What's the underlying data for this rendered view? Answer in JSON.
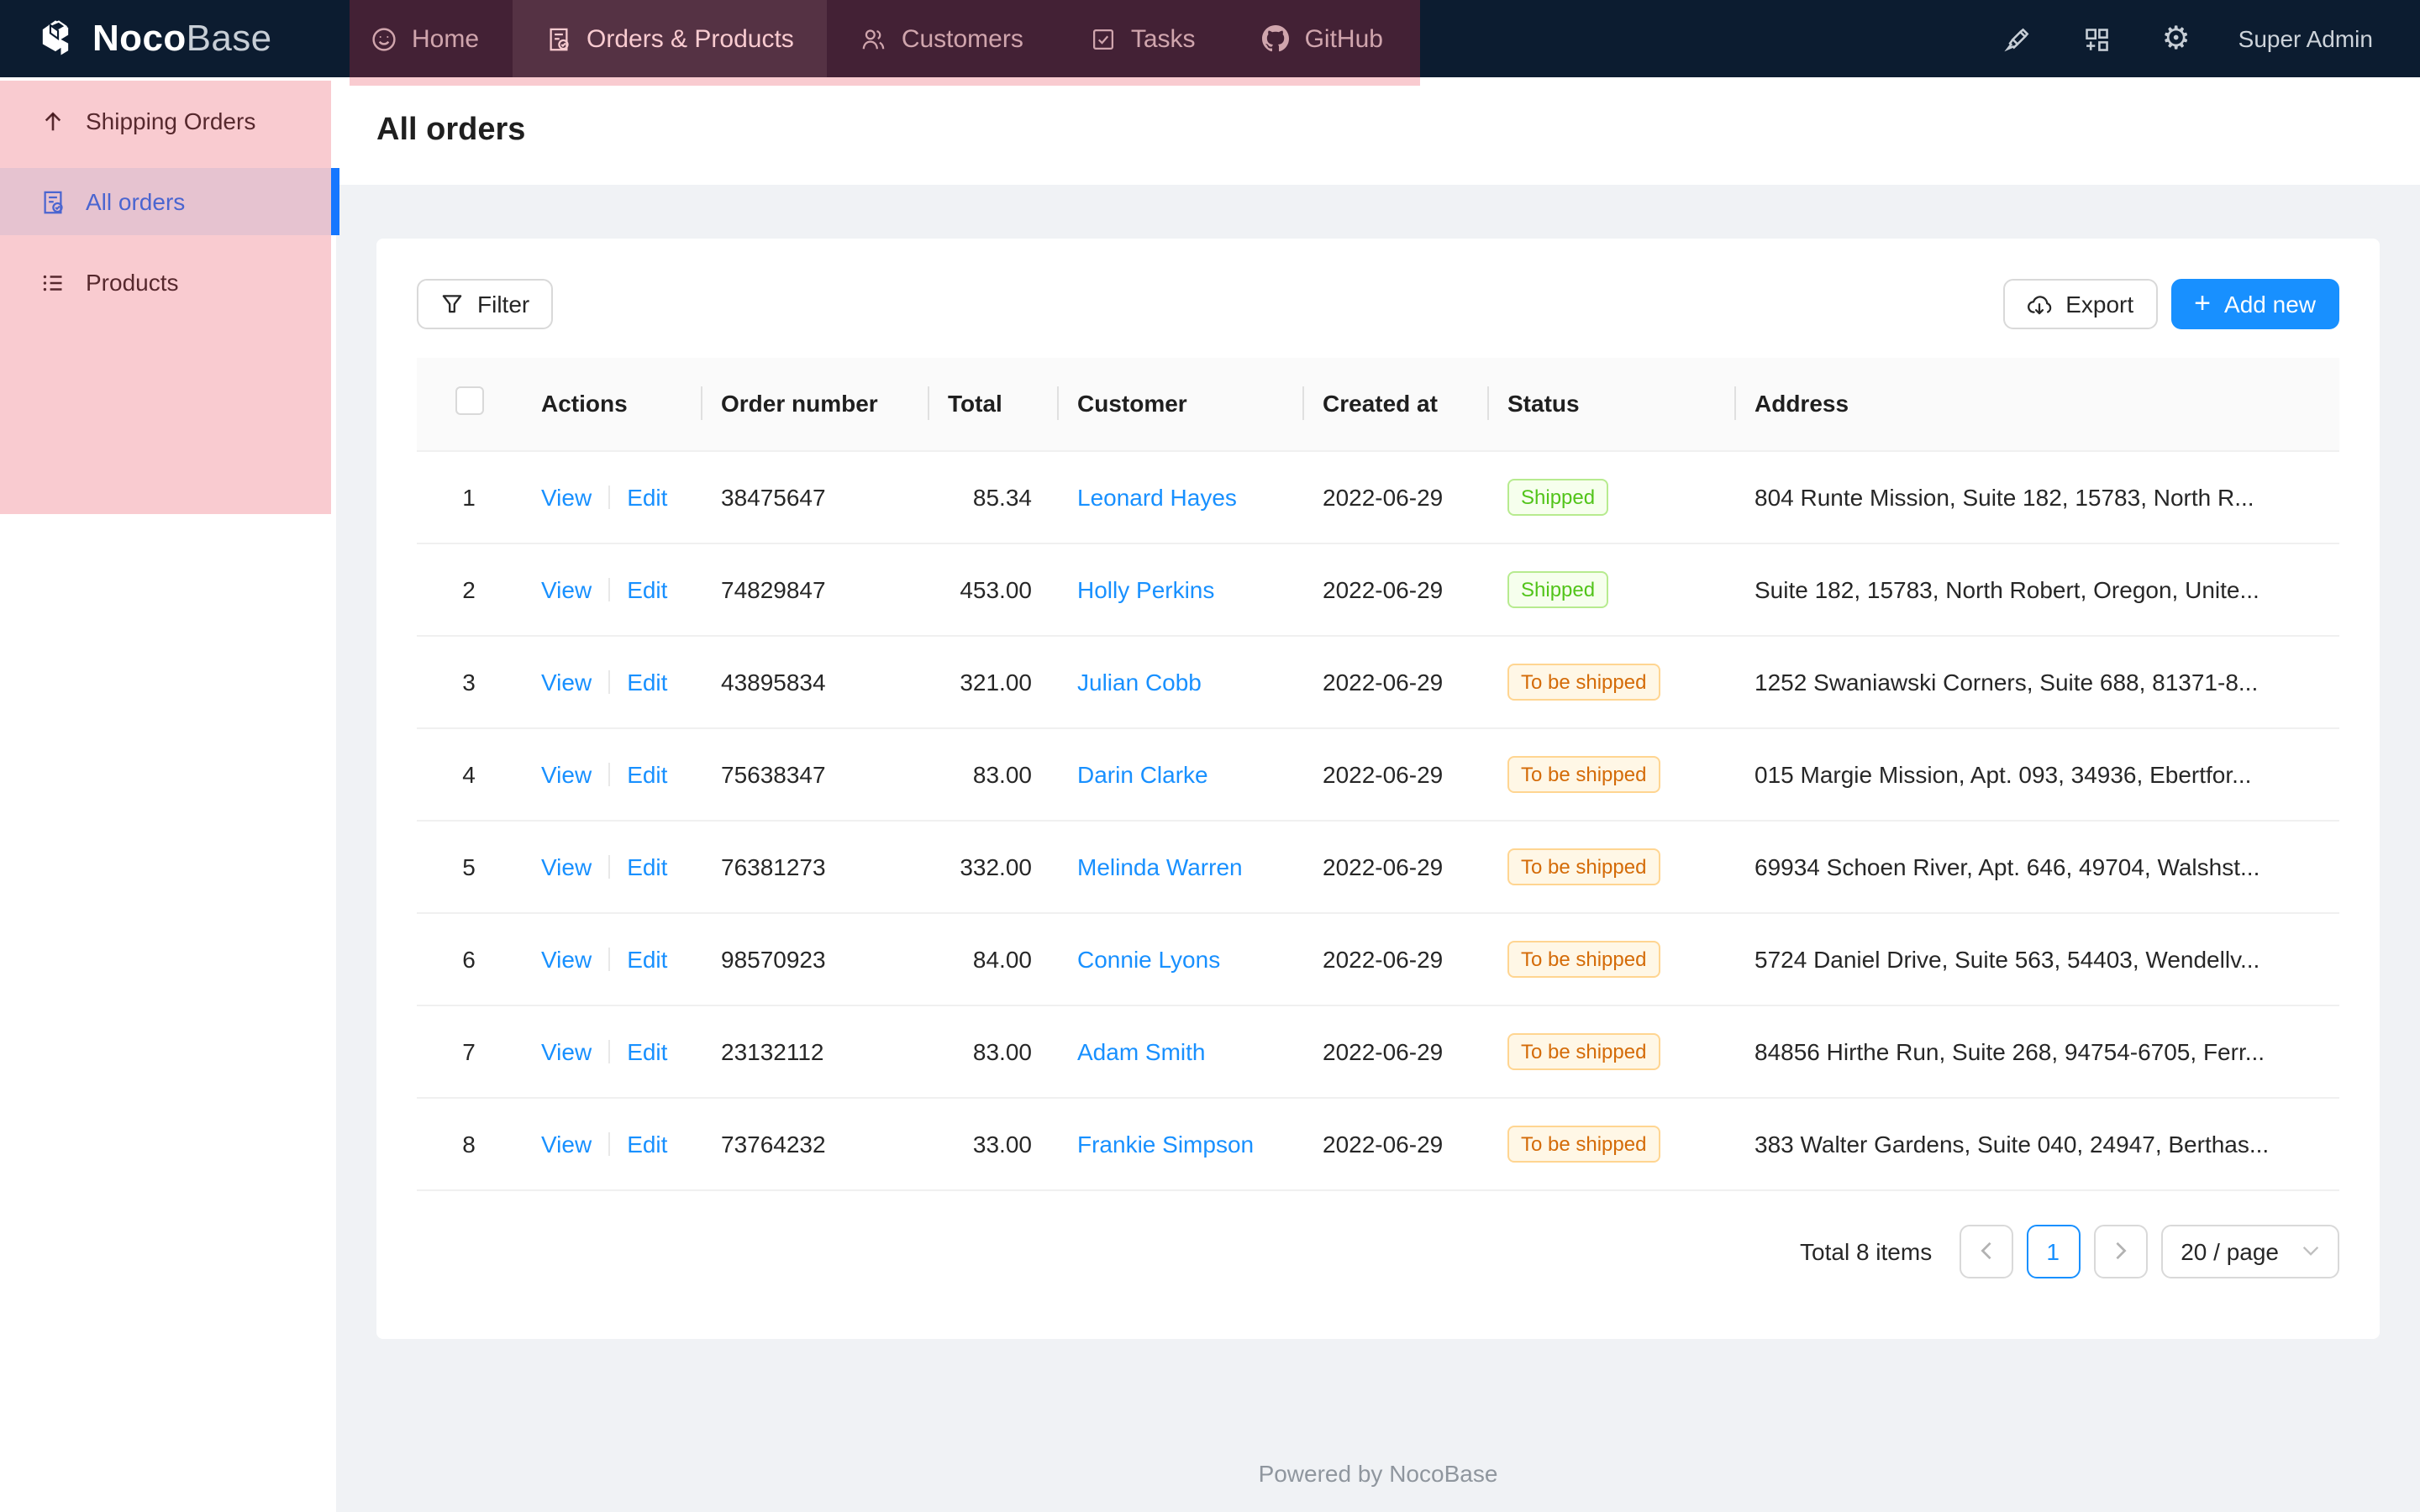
{
  "navbar": {
    "brand": {
      "bold": "Noco",
      "light": "Base"
    },
    "items": [
      {
        "label": "Home",
        "icon": "smile-icon",
        "selected": false
      },
      {
        "label": "Orders & Products",
        "icon": "file-done-icon",
        "selected": true
      },
      {
        "label": "Customers",
        "icon": "team-icon",
        "selected": false
      },
      {
        "label": "Tasks",
        "icon": "check-square-icon",
        "selected": false
      },
      {
        "label": "GitHub",
        "icon": "github-icon",
        "selected": false
      }
    ],
    "user": "Super Admin"
  },
  "sidebar": {
    "items": [
      {
        "label": "Shipping Orders",
        "icon": "arrow-up-icon",
        "active": false
      },
      {
        "label": "All orders",
        "icon": "file-check-icon",
        "active": true
      },
      {
        "label": "Products",
        "icon": "unordered-list-icon",
        "active": false
      }
    ]
  },
  "page": {
    "title": "All orders"
  },
  "toolbar": {
    "filter": "Filter",
    "export": "Export",
    "add_new": "Add new"
  },
  "table": {
    "columns": [
      "",
      "Actions",
      "Order number",
      "Total",
      "Customer",
      "Created at",
      "Status",
      "Address"
    ],
    "rows": [
      {
        "index": "1",
        "actions": [
          "View",
          "Edit"
        ],
        "order_number": "38475647",
        "total": "85.34",
        "customer": "Leonard Hayes",
        "created_at": "2022-06-29",
        "status": "Shipped",
        "status_type": "success",
        "address": "804 Runte Mission, Suite 182, 15783, North R..."
      },
      {
        "index": "2",
        "actions": [
          "View",
          "Edit"
        ],
        "order_number": "74829847",
        "total": "453.00",
        "customer": "Holly Perkins",
        "created_at": "2022-06-29",
        "status": "Shipped",
        "status_type": "success",
        "address": "Suite 182, 15783, North Robert, Oregon, Unite..."
      },
      {
        "index": "3",
        "actions": [
          "View",
          "Edit"
        ],
        "order_number": "43895834",
        "total": "321.00",
        "customer": "Julian Cobb",
        "created_at": "2022-06-29",
        "status": "To be shipped",
        "status_type": "warning",
        "address": "1252 Swaniawski Corners, Suite 688, 81371-8..."
      },
      {
        "index": "4",
        "actions": [
          "View",
          "Edit"
        ],
        "order_number": "75638347",
        "total": "83.00",
        "customer": "Darin Clarke",
        "created_at": "2022-06-29",
        "status": "To be shipped",
        "status_type": "warning",
        "address": "015 Margie Mission, Apt. 093, 34936, Ebertfor..."
      },
      {
        "index": "5",
        "actions": [
          "View",
          "Edit"
        ],
        "order_number": "76381273",
        "total": "332.00",
        "customer": "Melinda Warren",
        "created_at": "2022-06-29",
        "status": "To be shipped",
        "status_type": "warning",
        "address": "69934 Schoen River, Apt. 646, 49704, Walshst..."
      },
      {
        "index": "6",
        "actions": [
          "View",
          "Edit"
        ],
        "order_number": "98570923",
        "total": "84.00",
        "customer": "Connie Lyons",
        "created_at": "2022-06-29",
        "status": "To be shipped",
        "status_type": "warning",
        "address": "5724 Daniel Drive, Suite 563, 54403, Wendellv..."
      },
      {
        "index": "7",
        "actions": [
          "View",
          "Edit"
        ],
        "order_number": "23132112",
        "total": "83.00",
        "customer": "Adam Smith",
        "created_at": "2022-06-29",
        "status": "To be shipped",
        "status_type": "warning",
        "address": "84856 Hirthe Run, Suite 268, 94754-6705, Ferr..."
      },
      {
        "index": "8",
        "actions": [
          "View",
          "Edit"
        ],
        "order_number": "73764232",
        "total": "33.00",
        "customer": "Frankie Simpson",
        "created_at": "2022-06-29",
        "status": "To be shipped",
        "status_type": "warning",
        "address": "383 Walter Gardens, Suite 040, 24947, Berthas..."
      }
    ]
  },
  "pagination": {
    "total": "Total 8 items",
    "current_page": "1",
    "page_size": "20 / page"
  },
  "footer": {
    "powered_by": "Powered by NocoBase"
  },
  "colors": {
    "navbar_bg": "#0c1c30",
    "accent": "#1890ff",
    "sidebar_active": "#1677ff",
    "highlight_overlay": "rgba(232,47,67,0.25)",
    "status_success": "#52c41a",
    "status_warning": "#d46b08"
  }
}
